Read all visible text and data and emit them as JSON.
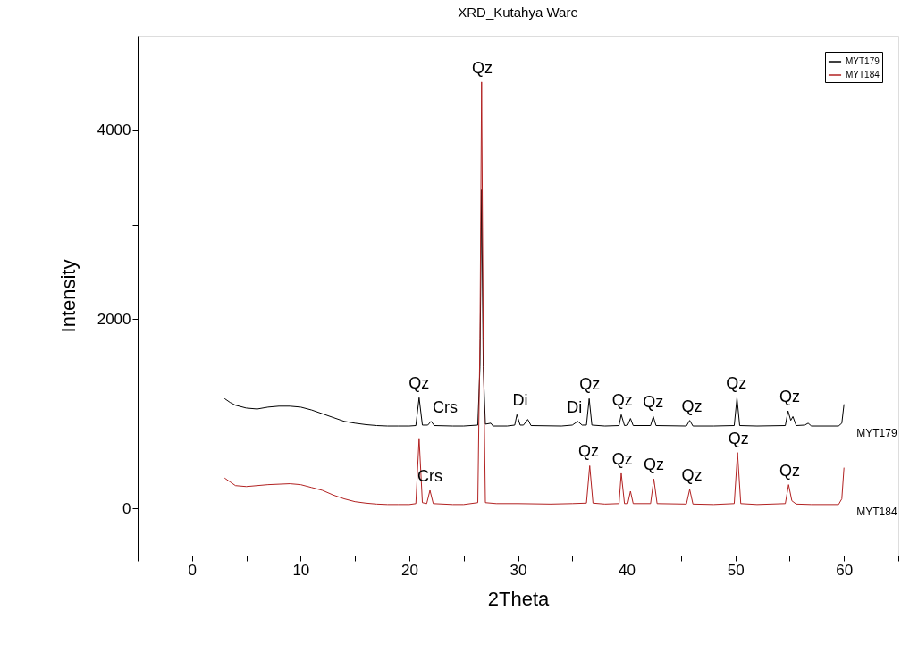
{
  "chart_data": {
    "type": "line",
    "title": "XRD_Kutahya Ware",
    "xlabel": "2Theta",
    "ylabel": "Intensity",
    "xlim": [
      -5,
      65
    ],
    "ylim": [
      -500,
      5000
    ],
    "xticks": [
      {
        "value": -5,
        "label": null
      },
      0,
      {
        "value": 5,
        "label": null
      },
      10,
      {
        "value": 15,
        "label": null
      },
      20,
      {
        "value": 25,
        "label": null
      },
      30,
      {
        "value": 35,
        "label": null
      },
      40,
      {
        "value": 45,
        "label": null
      },
      50,
      {
        "value": 55,
        "label": null
      },
      60,
      {
        "value": 65,
        "label": null
      }
    ],
    "yticks": [
      0,
      {
        "value": 1000,
        "label": null
      },
      2000,
      {
        "value": 3000,
        "label": null
      },
      4000
    ],
    "grid": false,
    "legend": "top right",
    "marker": "none",
    "line_style": "solid",
    "series": [
      {
        "name": "MYT179",
        "color": "#000000",
        "x": [
          3,
          3.5,
          4,
          5,
          6,
          7,
          8,
          9,
          10,
          11,
          12,
          13,
          14,
          15,
          16,
          17,
          18,
          19,
          20,
          20.6,
          20.9,
          21.2,
          21.7,
          22,
          22.3,
          24,
          25,
          26.3,
          26.5,
          26.65,
          26.8,
          27,
          27.5,
          27.7,
          29,
          29.7,
          29.9,
          30.2,
          30.5,
          30.9,
          31.2,
          34,
          35,
          35.5,
          35.9,
          36.3,
          36.55,
          36.8,
          38,
          39.3,
          39.5,
          39.8,
          40.1,
          40.35,
          40.6,
          42.2,
          42.45,
          42.7,
          45.5,
          45.8,
          46.1,
          48,
          49.9,
          50.15,
          50.4,
          52,
          54.6,
          54.85,
          55.1,
          55.3,
          55.6,
          56.4,
          56.7,
          57,
          59.5,
          59.8,
          60
        ],
        "values": [
          1160,
          1120,
          1090,
          1060,
          1050,
          1070,
          1080,
          1080,
          1070,
          1040,
          1000,
          960,
          920,
          900,
          885,
          875,
          870,
          870,
          870,
          875,
          1170,
          880,
          880,
          920,
          875,
          870,
          870,
          880,
          1500,
          3370,
          1500,
          890,
          900,
          870,
          870,
          880,
          990,
          880,
          880,
          940,
          875,
          870,
          880,
          920,
          880,
          880,
          1160,
          880,
          870,
          875,
          990,
          875,
          880,
          950,
          875,
          875,
          970,
          875,
          870,
          930,
          870,
          870,
          875,
          1170,
          875,
          870,
          875,
          1030,
          930,
          970,
          875,
          880,
          900,
          870,
          870,
          900,
          1100
        ]
      },
      {
        "name": "MYT184",
        "color": "#b22222",
        "x": [
          3,
          3.5,
          4,
          5,
          6,
          7,
          8,
          9,
          10,
          11,
          12,
          13,
          14,
          15,
          16,
          17,
          18,
          19,
          20,
          20.6,
          20.9,
          21.2,
          21.6,
          21.9,
          22.2,
          24,
          25,
          26.3,
          26.5,
          26.65,
          26.8,
          27,
          28,
          30,
          33,
          35,
          36.3,
          36.6,
          36.9,
          38,
          39.3,
          39.5,
          39.8,
          40.1,
          40.35,
          40.6,
          42.2,
          42.5,
          42.8,
          45.5,
          45.8,
          46.1,
          48,
          49.9,
          50.2,
          50.5,
          52,
          54.6,
          54.9,
          55.2,
          55.6,
          57,
          59.5,
          59.8,
          60
        ],
        "values": [
          320,
          280,
          240,
          230,
          240,
          250,
          255,
          260,
          250,
          220,
          190,
          140,
          100,
          70,
          55,
          45,
          40,
          40,
          40,
          50,
          740,
          60,
          50,
          190,
          50,
          40,
          40,
          60,
          1800,
          4510,
          1800,
          60,
          50,
          50,
          45,
          50,
          55,
          450,
          55,
          45,
          50,
          370,
          50,
          50,
          180,
          50,
          50,
          310,
          50,
          45,
          200,
          45,
          40,
          50,
          590,
          50,
          40,
          50,
          250,
          80,
          45,
          40,
          40,
          100,
          430
        ]
      }
    ],
    "annotations": [
      {
        "text": "Qz",
        "x": 26.7,
        "y": 4510
      },
      {
        "text": "Qz",
        "x": 20.9,
        "y": 1170
      },
      {
        "text": "Crs",
        "x": 23.3,
        "y": 920
      },
      {
        "text": "Di",
        "x": 30.2,
        "y": 990
      },
      {
        "text": "Di",
        "x": 35.2,
        "y": 920
      },
      {
        "text": "Qz",
        "x": 36.6,
        "y": 1160
      },
      {
        "text": "Qz",
        "x": 39.6,
        "y": 990
      },
      {
        "text": "Qz",
        "x": 42.45,
        "y": 970
      },
      {
        "text": "Qz",
        "x": 46,
        "y": 930
      },
      {
        "text": "Qz",
        "x": 50.1,
        "y": 1170
      },
      {
        "text": "Qz",
        "x": 55,
        "y": 1030
      },
      {
        "text": "Crs",
        "x": 21.9,
        "y": 190
      },
      {
        "text": "Qz",
        "x": 36.5,
        "y": 450
      },
      {
        "text": "Qz",
        "x": 39.6,
        "y": 370
      },
      {
        "text": "Qz",
        "x": 42.5,
        "y": 310
      },
      {
        "text": "Qz",
        "x": 46,
        "y": 200
      },
      {
        "text": "Qz",
        "x": 50.3,
        "y": 590
      },
      {
        "text": "Qz",
        "x": 55,
        "y": 250
      }
    ]
  }
}
